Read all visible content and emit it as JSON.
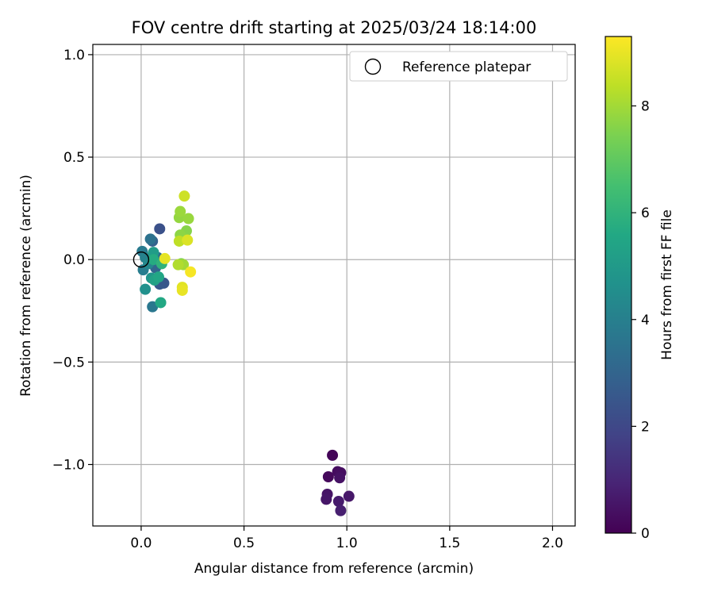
{
  "chart_data": {
    "type": "scatter",
    "title": "FOV centre drift starting at 2025/03/24 18:14:00",
    "xlabel": "Angular distance from reference (arcmin)",
    "ylabel": "Rotation from reference (arcmin)",
    "xlim": [
      -0.235,
      2.11
    ],
    "ylim": [
      -1.3,
      1.05
    ],
    "xticks": [
      0.0,
      0.5,
      1.0,
      1.5,
      2.0
    ],
    "xtick_labels": [
      "0.0",
      "0.5",
      "1.0",
      "1.5",
      "2.0"
    ],
    "yticks": [
      1.0,
      0.5,
      0.0,
      -0.5,
      -1.0
    ],
    "ytick_labels": [
      "1.0",
      "0.5",
      "0.0",
      "−0.5",
      "−1.0"
    ],
    "grid": true,
    "legend": {
      "placement": "top-right",
      "entries": [
        "Reference platepar"
      ]
    },
    "reference": {
      "x": 0.0,
      "y": 0.0,
      "label": "Reference platepar"
    },
    "colorbar": {
      "label": "Hours from first FF file",
      "range": [
        0,
        9.3
      ],
      "ticks": [
        0,
        2,
        4,
        6,
        8
      ],
      "tick_labels": [
        "0",
        "2",
        "4",
        "6",
        "8"
      ],
      "colormap": "viridis"
    },
    "points": [
      {
        "x": 0.93,
        "y": -0.955,
        "h": 0.1
      },
      {
        "x": 0.91,
        "y": -1.06,
        "h": 0.2
      },
      {
        "x": 0.955,
        "y": -1.035,
        "h": 0.3
      },
      {
        "x": 0.97,
        "y": -1.04,
        "h": 0.35
      },
      {
        "x": 0.965,
        "y": -1.065,
        "h": 0.45
      },
      {
        "x": 0.905,
        "y": -1.145,
        "h": 0.5
      },
      {
        "x": 0.9,
        "y": -1.17,
        "h": 0.55
      },
      {
        "x": 1.01,
        "y": -1.155,
        "h": 0.6
      },
      {
        "x": 0.96,
        "y": -1.18,
        "h": 0.7
      },
      {
        "x": 0.97,
        "y": -1.225,
        "h": 0.8
      },
      {
        "x": 0.09,
        "y": 0.15,
        "h": 2.3
      },
      {
        "x": 0.11,
        "y": -0.115,
        "h": 2.5
      },
      {
        "x": 0.09,
        "y": -0.12,
        "h": 2.6
      },
      {
        "x": 0.055,
        "y": 0.09,
        "h": 2.9
      },
      {
        "x": 0.07,
        "y": -0.04,
        "h": 3.1
      },
      {
        "x": 0.08,
        "y": 0.01,
        "h": 3.3
      },
      {
        "x": 0.045,
        "y": 0.1,
        "h": 3.5
      },
      {
        "x": 0.055,
        "y": -0.23,
        "h": 3.7
      },
      {
        "x": 0.005,
        "y": 0.04,
        "h": 3.8
      },
      {
        "x": 0.01,
        "y": -0.05,
        "h": 3.9
      },
      {
        "x": 0.02,
        "y": 0.01,
        "h": 4.1
      },
      {
        "x": 0.035,
        "y": -0.02,
        "h": 4.3
      },
      {
        "x": 0.02,
        "y": -0.145,
        "h": 4.6
      },
      {
        "x": 0.05,
        "y": -0.09,
        "h": 4.8
      },
      {
        "x": 0.06,
        "y": 0.035,
        "h": 5.1
      },
      {
        "x": 0.065,
        "y": -0.1,
        "h": 5.3
      },
      {
        "x": 0.085,
        "y": -0.085,
        "h": 5.5
      },
      {
        "x": 0.095,
        "y": -0.21,
        "h": 5.6
      },
      {
        "x": 0.06,
        "y": 0.0,
        "h": 5.7
      },
      {
        "x": 0.1,
        "y": -0.02,
        "h": 6.0
      },
      {
        "x": 0.195,
        "y": -0.02,
        "h": 7.5
      },
      {
        "x": 0.22,
        "y": 0.14,
        "h": 7.6
      },
      {
        "x": 0.19,
        "y": 0.12,
        "h": 7.7
      },
      {
        "x": 0.185,
        "y": 0.205,
        "h": 7.8
      },
      {
        "x": 0.23,
        "y": 0.2,
        "h": 7.85
      },
      {
        "x": 0.19,
        "y": 0.235,
        "h": 7.9
      },
      {
        "x": 0.205,
        "y": -0.025,
        "h": 8.0
      },
      {
        "x": 0.18,
        "y": -0.025,
        "h": 8.2
      },
      {
        "x": 0.185,
        "y": 0.09,
        "h": 8.4
      },
      {
        "x": 0.21,
        "y": 0.31,
        "h": 8.6
      },
      {
        "x": 0.225,
        "y": 0.095,
        "h": 8.8
      },
      {
        "x": 0.2,
        "y": -0.135,
        "h": 8.9
      },
      {
        "x": 0.115,
        "y": 0.005,
        "h": 8.95
      },
      {
        "x": 0.2,
        "y": -0.15,
        "h": 9.0
      },
      {
        "x": 0.24,
        "y": -0.06,
        "h": 9.2
      }
    ]
  }
}
